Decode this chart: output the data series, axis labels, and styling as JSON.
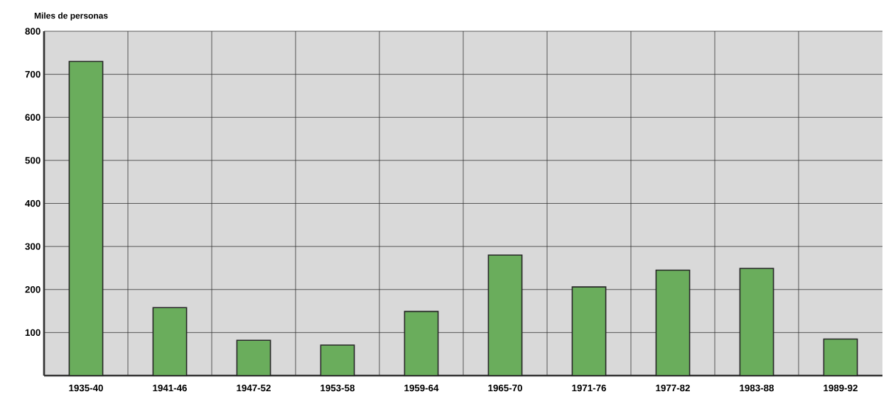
{
  "chart_data": {
    "type": "bar",
    "ylabel": "Miles de personas",
    "categories": [
      "1935-40",
      "1941-46",
      "1947-52",
      "1953-58",
      "1959-64",
      "1965-70",
      "1971-76",
      "1977-82",
      "1983-88",
      "1989-92"
    ],
    "values": [
      730,
      158,
      82,
      71,
      149,
      280,
      206,
      245,
      249,
      85
    ],
    "color": "#6aad5c",
    "ylim": [
      0,
      800
    ],
    "yticks": [
      100,
      200,
      300,
      400,
      500,
      600,
      700,
      800
    ],
    "grid": true
  }
}
